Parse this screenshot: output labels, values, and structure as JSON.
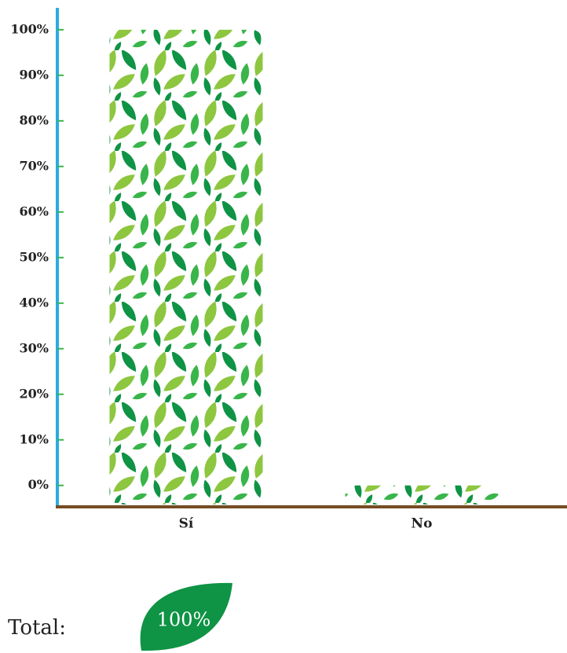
{
  "chart_data": {
    "type": "bar",
    "categories": [
      "Sí",
      "No"
    ],
    "values": [
      100,
      0
    ],
    "color": "#0f9345",
    "ylim": [
      -4.7,
      104.8
    ],
    "yticks": [
      {
        "value": 0,
        "label": "0%"
      },
      {
        "value": 10,
        "label": "10%"
      },
      {
        "value": 20,
        "label": "20%"
      },
      {
        "value": 30,
        "label": "30%"
      },
      {
        "value": 40,
        "label": "40%"
      },
      {
        "value": 50,
        "label": "50%"
      },
      {
        "value": 60,
        "label": "60%"
      },
      {
        "value": 70,
        "label": "70%"
      },
      {
        "value": 80,
        "label": "80%"
      },
      {
        "value": 90,
        "label": "90%"
      },
      {
        "value": 100,
        "label": "100%"
      }
    ],
    "total": {
      "label": "Total:",
      "value": "100%"
    }
  }
}
